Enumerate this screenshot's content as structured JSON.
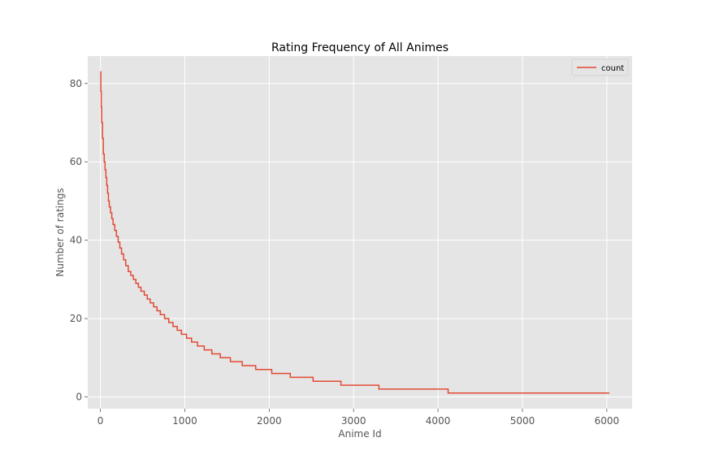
{
  "chart_data": {
    "type": "line",
    "title": "Rating Frequency of All Animes",
    "xlabel": "Anime Id",
    "ylabel": "Number of ratings",
    "xlim": [
      -150,
      6300
    ],
    "ylim": [
      -3,
      87
    ],
    "xticks": [
      0,
      1000,
      2000,
      3000,
      4000,
      5000,
      6000
    ],
    "yticks": [
      0,
      20,
      40,
      60,
      80
    ],
    "grid": true,
    "legend_position": "top-right",
    "step": true,
    "series": [
      {
        "name": "count",
        "color": "#E24A33",
        "points": [
          [
            0,
            83
          ],
          [
            5,
            78
          ],
          [
            10,
            74
          ],
          [
            15,
            70
          ],
          [
            25,
            66
          ],
          [
            35,
            62
          ],
          [
            45,
            60
          ],
          [
            55,
            58
          ],
          [
            65,
            56
          ],
          [
            75,
            54
          ],
          [
            85,
            52
          ],
          [
            95,
            50
          ],
          [
            105,
            48.5
          ],
          [
            120,
            47
          ],
          [
            135,
            45.5
          ],
          [
            150,
            44
          ],
          [
            170,
            42.5
          ],
          [
            190,
            41
          ],
          [
            210,
            39.5
          ],
          [
            230,
            38
          ],
          [
            250,
            36.5
          ],
          [
            275,
            35
          ],
          [
            300,
            33.5
          ],
          [
            330,
            32
          ],
          [
            360,
            31
          ],
          [
            390,
            30
          ],
          [
            420,
            29
          ],
          [
            450,
            28
          ],
          [
            480,
            27
          ],
          [
            520,
            26
          ],
          [
            555,
            25
          ],
          [
            590,
            24
          ],
          [
            630,
            23
          ],
          [
            670,
            22
          ],
          [
            710,
            21
          ],
          [
            760,
            20
          ],
          [
            810,
            19
          ],
          [
            860,
            18
          ],
          [
            910,
            17
          ],
          [
            960,
            16
          ],
          [
            1020,
            15
          ],
          [
            1080,
            14
          ],
          [
            1150,
            13
          ],
          [
            1230,
            12
          ],
          [
            1320,
            11
          ],
          [
            1420,
            10
          ],
          [
            1540,
            9
          ],
          [
            1680,
            8
          ],
          [
            1840,
            7
          ],
          [
            2030,
            6
          ],
          [
            2250,
            5
          ],
          [
            2520,
            4
          ],
          [
            2850,
            3
          ],
          [
            3300,
            2
          ],
          [
            4120,
            1
          ],
          [
            6030,
            1
          ]
        ]
      }
    ]
  }
}
